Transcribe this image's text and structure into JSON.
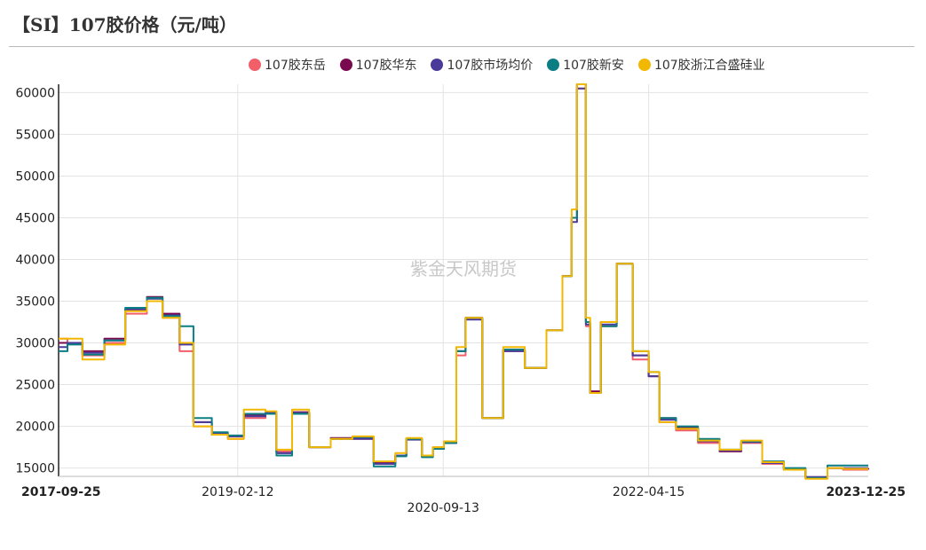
{
  "title": "【SI】107胶价格（元/吨）",
  "watermark": "紫金天风期货",
  "colors": {
    "107胶东岳": "#f25f6b",
    "107胶华东": "#7a0a4f",
    "107胶市场均价": "#4a3a9a",
    "107胶新安": "#0b7e84",
    "107胶浙江合盛硅业": "#f2b800"
  },
  "chart_data": {
    "type": "line",
    "xlim": [
      "2017-09-25",
      "2023-12-25"
    ],
    "ylim": [
      14000,
      61000
    ],
    "grid": true,
    "legend_position": "top",
    "x_ticks": [
      {
        "label": "2017-09-25",
        "date": "2017-09-25",
        "bold": true
      },
      {
        "label": "2019-02-12",
        "date": "2019-02-12",
        "bold": false
      },
      {
        "label": "2020-09-13",
        "date": "2020-09-13",
        "bold": false
      },
      {
        "label": "2022-04-15",
        "date": "2022-04-15",
        "bold": false
      },
      {
        "label": "2023-12-25",
        "date": "2023-12-25",
        "bold": true
      }
    ],
    "y_ticks": [
      15000,
      20000,
      25000,
      30000,
      35000,
      40000,
      45000,
      50000,
      55000,
      60000
    ],
    "series": [
      {
        "name": "107胶东岳",
        "x": [
          "2017-09-25",
          "2017-10-20",
          "2017-12-01",
          "2018-02-01",
          "2018-04-01",
          "2018-06-01",
          "2018-07-15",
          "2018-09-01",
          "2018-10-10",
          "2018-10-20",
          "2018-12-01",
          "2019-01-15",
          "2019-03-01",
          "2019-05-01",
          "2019-06-01",
          "2019-07-15",
          "2019-09-01",
          "2019-11-01",
          "2020-01-01",
          "2020-03-01",
          "2020-05-01",
          "2020-06-01",
          "2020-07-15",
          "2020-08-15",
          "2020-09-15",
          "2020-10-20",
          "2020-11-15",
          "2021-01-01",
          "2021-03-01",
          "2021-05-01",
          "2021-07-01",
          "2021-08-15",
          "2021-09-10",
          "2021-09-25",
          "2021-10-20",
          "2021-11-01",
          "2021-12-01",
          "2022-01-15",
          "2022-03-01",
          "2022-04-15",
          "2022-05-15",
          "2022-07-01",
          "2022-09-01",
          "2022-11-01",
          "2023-01-01",
          "2023-03-01",
          "2023-05-01",
          "2023-07-01",
          "2023-09-01",
          "2023-10-15",
          "2023-12-25"
        ],
        "values": [
          30500,
          30000,
          28500,
          30000,
          33500,
          35000,
          33000,
          29000,
          20000,
          20000,
          19000,
          18500,
          21000,
          21500,
          17000,
          21500,
          17500,
          18500,
          18500,
          15500,
          16500,
          18500,
          16500,
          17500,
          18000,
          28500,
          33000,
          21000,
          29000,
          27000,
          31500,
          38000,
          45000,
          60500,
          32000,
          24000,
          32000,
          39500,
          28000,
          26000,
          20500,
          19500,
          18000,
          17000,
          18000,
          15500,
          14800,
          13800,
          15000,
          14800,
          14800
        ]
      },
      {
        "name": "107胶华东",
        "x": [
          "2017-09-25",
          "2017-10-20",
          "2017-12-01",
          "2018-02-01",
          "2018-04-01",
          "2018-06-01",
          "2018-07-15",
          "2018-09-01",
          "2018-10-10",
          "2018-10-20",
          "2018-12-01",
          "2019-01-15",
          "2019-03-01",
          "2019-05-01",
          "2019-06-01",
          "2019-07-15",
          "2019-09-01",
          "2019-11-01",
          "2020-01-01",
          "2020-03-01",
          "2020-05-01",
          "2020-06-01",
          "2020-07-15",
          "2020-08-15",
          "2020-09-15",
          "2020-10-20",
          "2020-11-15",
          "2021-01-01",
          "2021-03-01",
          "2021-05-01",
          "2021-07-01",
          "2021-08-15",
          "2021-09-10",
          "2021-09-25",
          "2021-10-20",
          "2021-11-01",
          "2021-12-01",
          "2022-01-15",
          "2022-03-01",
          "2022-04-15",
          "2022-05-15",
          "2022-07-01",
          "2022-09-01",
          "2022-11-01",
          "2023-01-01",
          "2023-03-01",
          "2023-05-01",
          "2023-07-01",
          "2023-09-01",
          "2023-10-15",
          "2023-12-25"
        ],
        "values": [
          30000,
          30000,
          29000,
          30500,
          34000,
          35500,
          33500,
          30000,
          20500,
          20500,
          19000,
          18800,
          21300,
          21500,
          16800,
          21700,
          17500,
          18600,
          18600,
          15600,
          16500,
          18500,
          16400,
          17300,
          18000,
          29000,
          33000,
          21000,
          29200,
          27000,
          31500,
          38000,
          45000,
          61000,
          32500,
          24200,
          32500,
          39500,
          28500,
          26000,
          21000,
          19800,
          18300,
          17000,
          18200,
          15700,
          14800,
          13900,
          15000,
          14900,
          15000
        ]
      },
      {
        "name": "107胶市场均价",
        "x": [
          "2017-09-25",
          "2017-10-20",
          "2017-12-01",
          "2018-02-01",
          "2018-04-01",
          "2018-06-01",
          "2018-07-15",
          "2018-09-01",
          "2018-10-10",
          "2018-10-20",
          "2018-12-01",
          "2019-01-15",
          "2019-03-01",
          "2019-05-01",
          "2019-06-01",
          "2019-07-15",
          "2019-09-01",
          "2019-11-01",
          "2020-01-01",
          "2020-03-01",
          "2020-05-01",
          "2020-06-01",
          "2020-07-15",
          "2020-08-15",
          "2020-09-15",
          "2020-10-20",
          "2020-11-15",
          "2021-01-01",
          "2021-03-01",
          "2021-05-01",
          "2021-07-01",
          "2021-08-15",
          "2021-09-10",
          "2021-09-25",
          "2021-10-20",
          "2021-11-01",
          "2021-12-01",
          "2022-01-15",
          "2022-03-01",
          "2022-04-15",
          "2022-05-15",
          "2022-07-01",
          "2022-09-01",
          "2022-11-01",
          "2023-01-01",
          "2023-03-01",
          "2023-05-01",
          "2023-07-01",
          "2023-09-01",
          "2023-10-15",
          "2023-12-25"
        ],
        "values": [
          29500,
          30000,
          28800,
          30300,
          34000,
          35300,
          33300,
          29800,
          20500,
          20500,
          19200,
          18800,
          21200,
          21600,
          16800,
          21600,
          17500,
          18500,
          18500,
          15500,
          16500,
          18400,
          16500,
          17400,
          18000,
          29000,
          32800,
          21000,
          29000,
          27000,
          31500,
          38000,
          44500,
          60500,
          32200,
          24000,
          32200,
          39500,
          28500,
          26000,
          20800,
          19700,
          18200,
          17100,
          18100,
          15600,
          14800,
          13900,
          15000,
          15000,
          15000
        ]
      },
      {
        "name": "107胶新安",
        "x": [
          "2017-09-25",
          "2017-10-20",
          "2017-12-01",
          "2018-02-01",
          "2018-04-01",
          "2018-06-01",
          "2018-07-15",
          "2018-09-01",
          "2018-10-10",
          "2018-10-20",
          "2018-12-01",
          "2019-01-15",
          "2019-03-01",
          "2019-05-01",
          "2019-06-01",
          "2019-07-15",
          "2019-09-01",
          "2019-11-01",
          "2020-01-01",
          "2020-03-01",
          "2020-05-01",
          "2020-06-01",
          "2020-07-15",
          "2020-08-15",
          "2020-09-15",
          "2020-10-20",
          "2020-11-15",
          "2021-01-01",
          "2021-03-01",
          "2021-05-01",
          "2021-07-01",
          "2021-08-15",
          "2021-09-10",
          "2021-09-25",
          "2021-10-20",
          "2021-11-01",
          "2021-12-01",
          "2022-01-15",
          "2022-03-01",
          "2022-04-15",
          "2022-05-15",
          "2022-07-01",
          "2022-09-01",
          "2022-11-01",
          "2023-01-01",
          "2023-03-01",
          "2023-05-01",
          "2023-07-01",
          "2023-09-01",
          "2023-10-15",
          "2023-12-25"
        ],
        "values": [
          29000,
          29800,
          28600,
          30300,
          34200,
          35400,
          33200,
          32000,
          21000,
          21000,
          19300,
          18900,
          21500,
          21500,
          16500,
          21500,
          17500,
          18500,
          18700,
          15200,
          16400,
          18500,
          16300,
          17300,
          18000,
          29000,
          33000,
          21000,
          29200,
          27000,
          31500,
          38000,
          45000,
          61000,
          32500,
          24000,
          32000,
          39500,
          29000,
          26500,
          21000,
          20000,
          18500,
          17200,
          18200,
          15800,
          15000,
          13800,
          15300,
          15300,
          15300
        ]
      },
      {
        "name": "107胶浙江合盛硅业",
        "x": [
          "2017-09-25",
          "2017-10-20",
          "2017-12-01",
          "2018-02-01",
          "2018-04-01",
          "2018-06-01",
          "2018-07-15",
          "2018-09-01",
          "2018-10-10",
          "2018-10-20",
          "2018-12-01",
          "2019-01-15",
          "2019-03-01",
          "2019-05-01",
          "2019-06-01",
          "2019-07-15",
          "2019-09-01",
          "2019-11-01",
          "2020-01-01",
          "2020-03-01",
          "2020-05-01",
          "2020-06-01",
          "2020-07-15",
          "2020-08-15",
          "2020-09-15",
          "2020-10-20",
          "2020-11-15",
          "2021-01-01",
          "2021-03-01",
          "2021-05-01",
          "2021-07-01",
          "2021-08-15",
          "2021-09-10",
          "2021-09-25",
          "2021-10-20",
          "2021-11-01",
          "2021-12-01",
          "2022-01-15",
          "2022-03-01",
          "2022-04-15",
          "2022-05-15",
          "2022-07-01",
          "2022-09-01",
          "2022-11-01",
          "2023-01-01",
          "2023-03-01",
          "2023-05-01",
          "2023-07-01",
          "2023-09-01",
          "2023-10-15",
          "2023-12-25"
        ],
        "values": [
          30500,
          30500,
          28000,
          29800,
          33800,
          35000,
          33000,
          30000,
          20000,
          20000,
          19000,
          18500,
          22000,
          21800,
          17200,
          22000,
          17500,
          18500,
          18800,
          15800,
          16800,
          18600,
          16500,
          17500,
          18200,
          29500,
          33000,
          21000,
          29500,
          27000,
          31500,
          38000,
          46000,
          61000,
          33000,
          24000,
          32500,
          39500,
          29000,
          26500,
          20500,
          19700,
          18300,
          17200,
          18300,
          15700,
          14800,
          13700,
          15000,
          14900,
          14900
        ]
      }
    ]
  }
}
